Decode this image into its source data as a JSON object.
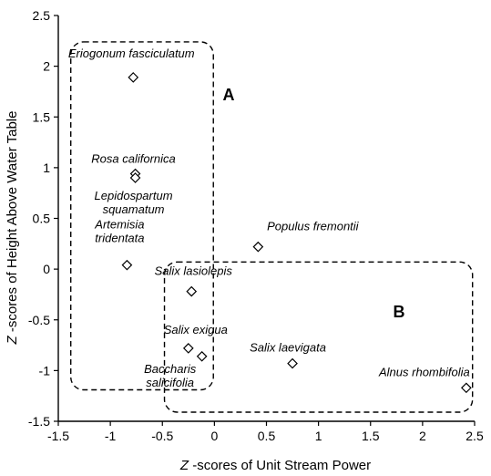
{
  "chart_data": {
    "type": "scatter",
    "xlabel_italic": "Z",
    "xlabel_rest": " -scores of Unit Stream Power",
    "ylabel_italic": "Z",
    "ylabel_rest": " -scores of Height Above Water Table",
    "xlim": [
      -1.5,
      2.5
    ],
    "ylim": [
      -1.5,
      2.5
    ],
    "xticks": [
      -1.5,
      -1,
      -0.5,
      0,
      0.5,
      1,
      1.5,
      2,
      2.5
    ],
    "yticks": [
      -1.5,
      -1,
      -0.5,
      0,
      0.5,
      1,
      1.5,
      2,
      2.5
    ],
    "grid": false,
    "points": [
      {
        "x": -0.78,
        "y": 1.89,
        "label": [
          "Eriogonum fasciculatum"
        ]
      },
      {
        "x": -0.76,
        "y": 0.94,
        "label": [
          "Rosa californica"
        ]
      },
      {
        "x": -0.76,
        "y": 0.9,
        "label": [
          "Lepidospartum",
          "squamatum"
        ]
      },
      {
        "x": -0.84,
        "y": 0.04,
        "label": [
          "Artemisia",
          "tridentata"
        ]
      },
      {
        "x": 0.42,
        "y": 0.22,
        "label": [
          "Populus fremontii"
        ]
      },
      {
        "x": -0.22,
        "y": -0.22,
        "label": [
          "Salix lasiolepis"
        ]
      },
      {
        "x": -0.25,
        "y": -0.78,
        "label": [
          "Salix exigua"
        ]
      },
      {
        "x": -0.12,
        "y": -0.86,
        "label": [
          "Baccharis",
          "salicifolia"
        ]
      },
      {
        "x": 0.75,
        "y": -0.93,
        "label": [
          "Salix laevigata"
        ]
      },
      {
        "x": 2.42,
        "y": -1.17,
        "label": [
          "Alnus rhombifolia"
        ]
      }
    ],
    "groups": [
      {
        "label": "A",
        "x_range": [
          -1.38,
          -0.01
        ],
        "y_range": [
          -1.19,
          2.24
        ]
      },
      {
        "label": "B",
        "x_range": [
          -0.48,
          2.48
        ],
        "y_range": [
          -1.41,
          0.07
        ]
      }
    ]
  }
}
